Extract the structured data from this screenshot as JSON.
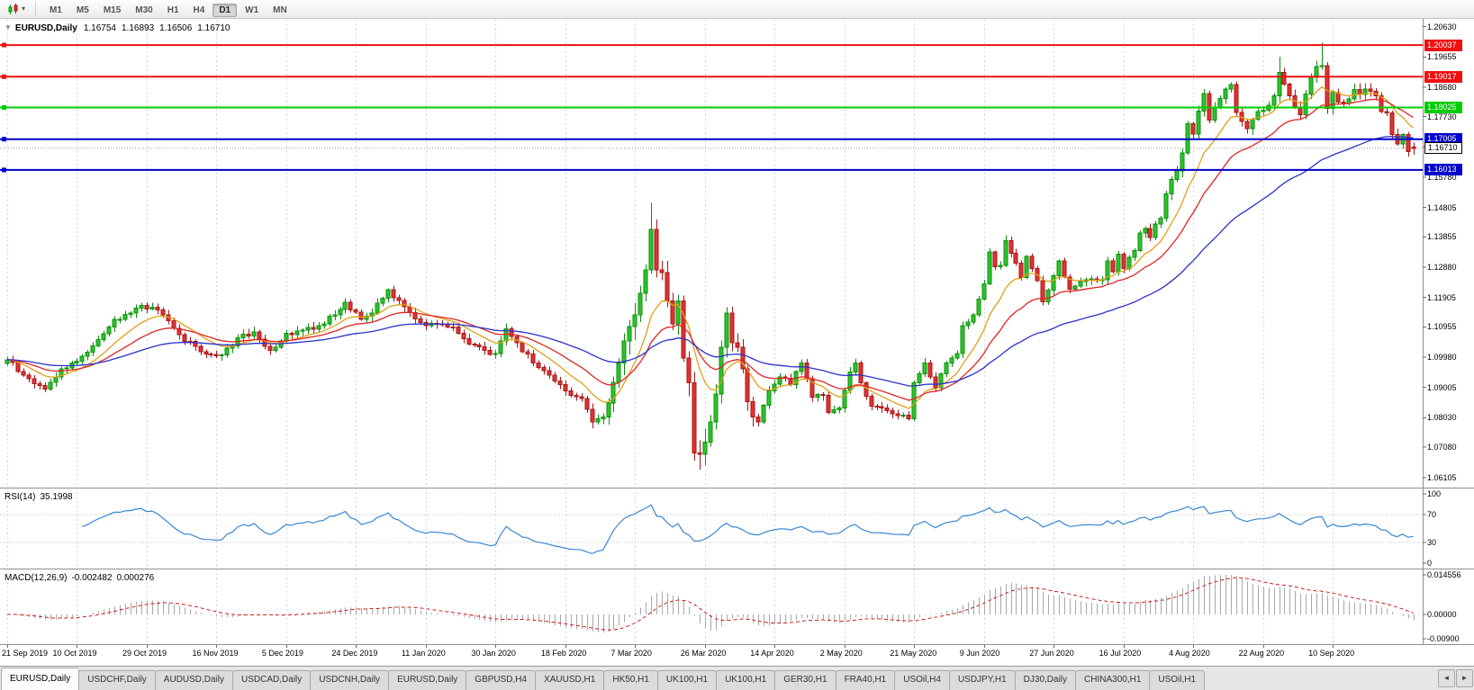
{
  "toolbar": {
    "timeframes": [
      "M1",
      "M5",
      "M15",
      "M30",
      "H1",
      "H4",
      "D1",
      "W1",
      "MN"
    ],
    "active_timeframe": "D1"
  },
  "chart_header": {
    "collapse_icon": "▼",
    "symbol_title": "EURUSD,Daily",
    "open": "1.16754",
    "high": "1.16893",
    "low": "1.16506",
    "close": "1.16710"
  },
  "price_axis_labels": [
    "1.20630",
    "1.19655",
    "1.18680",
    "1.17730",
    "1.16755",
    "1.15780",
    "1.14805",
    "1.13855",
    "1.12880",
    "1.11905",
    "1.10955",
    "1.09980",
    "1.09005",
    "1.08030",
    "1.07080",
    "1.06105"
  ],
  "horizontal_lines": [
    {
      "label": "1.20037",
      "price": 1.20037,
      "color": "#ee1111"
    },
    {
      "label": "1.19017",
      "price": 1.19017,
      "color": "#ee1111"
    },
    {
      "label": "1.18025",
      "price": 1.18025,
      "color": "#00cc00"
    },
    {
      "label": "1.17005",
      "price": 1.17005,
      "color": "#0000cc"
    },
    {
      "label": "1.16013",
      "price": 1.16013,
      "color": "#0000cc"
    }
  ],
  "current_price_tag": {
    "label": "1.16710",
    "price": 1.1671
  },
  "date_labels": [
    "21 Sep 2019",
    "10 Oct 2019",
    "29 Oct 2019",
    "16 Nov 2019",
    "5 Dec 2019",
    "24 Dec 2019",
    "11 Jan 2020",
    "30 Jan 2020",
    "18 Feb 2020",
    "7 Mar 2020",
    "26 Mar 2020",
    "14 Apr 2020",
    "2 May 2020",
    "21 May 2020",
    "9 Jun 2020",
    "27 Jun 2020",
    "16 Jul 2020",
    "4 Aug 2020",
    "22 Aug 2020",
    "10 Sep 2020"
  ],
  "rsi_panel": {
    "label": "RSI(14)",
    "value": "35.1998",
    "axis_labels": [
      {
        "text": "100",
        "value": 100
      },
      {
        "text": "70",
        "value": 70
      },
      {
        "text": "30",
        "value": 30
      },
      {
        "text": "0",
        "value": 0
      }
    ]
  },
  "macd_panel": {
    "label": "MACD(12,26,9)",
    "value_main": "-0.002482",
    "value_signal": "0.000276",
    "axis_labels": [
      {
        "text": "0.014556",
        "value": 0.014556
      },
      {
        "text": "0.00000",
        "value": 0
      },
      {
        "text": "-0.00900",
        "value": -0.009
      }
    ]
  },
  "tabs": {
    "items": [
      "EURUSD,Daily",
      "USDCHF,Daily",
      "AUDUSD,Daily",
      "USDCAD,Daily",
      "USDCNH,Daily",
      "EURUSD,Daily",
      "GBPUSD,H4",
      "XAUUSD,H1",
      "HK50,H1",
      "UK100,H1",
      "UK100,H1",
      "GER30,H1",
      "FRA40,H1",
      "USOil,H4",
      "USDJPY,H1",
      "DJ30,Daily",
      "CHINA300,H1",
      "USOil,H1"
    ],
    "active_index": 0,
    "scroll_left_icon": "◄",
    "scroll_right_icon": "►"
  },
  "chart_data": {
    "type": "candlestick",
    "symbol": "EURUSD",
    "timeframe": "Daily",
    "bar_count": 263,
    "price_range": {
      "max": 1.2088,
      "min": 1.0578
    },
    "bars_per_date_tick": 13,
    "up_fill": "#2cc42c",
    "up_border": "#0b8f0b",
    "down_fill": "#df3434",
    "down_border": "#a81414",
    "grid_color": "#d8d8d8",
    "current_line_color": "#9a9a9a",
    "close_keyframes": [
      [
        0,
        1.099
      ],
      [
        3,
        1.094
      ],
      [
        7,
        1.0895
      ],
      [
        10,
        1.096
      ],
      [
        13,
        1.0985
      ],
      [
        16,
        1.1035
      ],
      [
        20,
        1.112
      ],
      [
        23,
        1.114
      ],
      [
        25,
        1.1165
      ],
      [
        28,
        1.115
      ],
      [
        32,
        1.107
      ],
      [
        36,
        1.1015
      ],
      [
        40,
        1.1005
      ],
      [
        43,
        1.106
      ],
      [
        46,
        1.108
      ],
      [
        49,
        1.102
      ],
      [
        52,
        1.1075
      ],
      [
        55,
        1.1085
      ],
      [
        58,
        1.11
      ],
      [
        61,
        1.1135
      ],
      [
        63,
        1.1175
      ],
      [
        66,
        1.112
      ],
      [
        68,
        1.114
      ],
      [
        71,
        1.1215
      ],
      [
        74,
        1.116
      ],
      [
        77,
        1.111
      ],
      [
        80,
        1.1105
      ],
      [
        83,
        1.1095
      ],
      [
        86,
        1.104
      ],
      [
        89,
        1.102
      ],
      [
        91,
        1.101
      ],
      [
        93,
        1.109
      ],
      [
        95,
        1.1045
      ],
      [
        98,
        1.098
      ],
      [
        101,
        1.094
      ],
      [
        104,
        1.089
      ],
      [
        107,
        1.0865
      ],
      [
        109,
        1.079
      ],
      [
        111,
        1.0805
      ],
      [
        112,
        1.085
      ],
      [
        114,
        1.098
      ],
      [
        115,
        1.105
      ],
      [
        117,
        1.1135
      ],
      [
        119,
        1.128
      ],
      [
        120,
        1.141
      ],
      [
        121,
        1.128
      ],
      [
        122,
        1.127
      ],
      [
        123,
        1.118
      ],
      [
        124,
        1.1105
      ],
      [
        125,
        1.118
      ],
      [
        126,
        1.0995
      ],
      [
        127,
        1.0915
      ],
      [
        128,
        1.069
      ],
      [
        129,
        1.0685
      ],
      [
        130,
        1.0725
      ],
      [
        131,
        1.079
      ],
      [
        132,
        1.088
      ],
      [
        133,
        1.103
      ],
      [
        134,
        1.114
      ],
      [
        135,
        1.1045
      ],
      [
        136,
        1.103
      ],
      [
        137,
        1.096
      ],
      [
        138,
        1.0855
      ],
      [
        139,
        1.0805
      ],
      [
        140,
        1.079
      ],
      [
        142,
        1.089
      ],
      [
        144,
        1.0935
      ],
      [
        146,
        1.091
      ],
      [
        148,
        1.098
      ],
      [
        150,
        1.087
      ],
      [
        152,
        1.0875
      ],
      [
        153,
        1.082
      ],
      [
        155,
        1.0835
      ],
      [
        157,
        1.095
      ],
      [
        158,
        1.098
      ],
      [
        159,
        1.0915
      ],
      [
        161,
        1.084
      ],
      [
        163,
        1.0835
      ],
      [
        166,
        1.081
      ],
      [
        168,
        1.08
      ],
      [
        169,
        1.0915
      ],
      [
        171,
        1.098
      ],
      [
        173,
        1.09
      ],
      [
        175,
        1.098
      ],
      [
        177,
        1.101
      ],
      [
        178,
        1.11
      ],
      [
        180,
        1.1135
      ],
      [
        182,
        1.1235
      ],
      [
        183,
        1.1337
      ],
      [
        184,
        1.1289
      ],
      [
        185,
        1.1294
      ],
      [
        186,
        1.1374
      ],
      [
        188,
        1.1301
      ],
      [
        189,
        1.1255
      ],
      [
        190,
        1.1323
      ],
      [
        192,
        1.1245
      ],
      [
        193,
        1.1177
      ],
      [
        195,
        1.1261
      ],
      [
        196,
        1.1308
      ],
      [
        198,
        1.1217
      ],
      [
        200,
        1.1242
      ],
      [
        202,
        1.125
      ],
      [
        204,
        1.1248
      ],
      [
        205,
        1.1309
      ],
      [
        206,
        1.1273
      ],
      [
        207,
        1.133
      ],
      [
        208,
        1.1284
      ],
      [
        210,
        1.1342
      ],
      [
        211,
        1.1398
      ],
      [
        212,
        1.1412
      ],
      [
        213,
        1.1383
      ],
      [
        214,
        1.1427
      ],
      [
        215,
        1.1446
      ],
      [
        216,
        1.1525
      ],
      [
        217,
        1.1571
      ],
      [
        218,
        1.1598
      ],
      [
        219,
        1.1656
      ],
      [
        220,
        1.175
      ],
      [
        221,
        1.1717
      ],
      [
        222,
        1.1791
      ],
      [
        223,
        1.1847
      ],
      [
        224,
        1.1762
      ],
      [
        225,
        1.1802
      ],
      [
        227,
        1.1862
      ],
      [
        228,
        1.1876
      ],
      [
        229,
        1.1787
      ],
      [
        231,
        1.1735
      ],
      [
        233,
        1.179
      ],
      [
        235,
        1.181
      ],
      [
        236,
        1.184
      ],
      [
        237,
        1.1916
      ],
      [
        239,
        1.184
      ],
      [
        241,
        1.178
      ],
      [
        243,
        1.19
      ],
      [
        244,
        1.1935
      ],
      [
        245,
        1.1938
      ],
      [
        246,
        1.18
      ],
      [
        247,
        1.185
      ],
      [
        248,
        1.182
      ],
      [
        249,
        1.1815
      ],
      [
        250,
        1.183
      ],
      [
        251,
        1.186
      ],
      [
        252,
        1.1845
      ],
      [
        253,
        1.1862
      ],
      [
        254,
        1.1855
      ],
      [
        255,
        1.184
      ],
      [
        256,
        1.179
      ],
      [
        257,
        1.1785
      ],
      [
        258,
        1.1716
      ],
      [
        259,
        1.1685
      ],
      [
        260,
        1.1715
      ],
      [
        261,
        1.166
      ],
      [
        262,
        1.1671
      ]
    ],
    "wick_overrides": [
      [
        120,
        "h",
        1.1495
      ],
      [
        129,
        "l",
        1.0636
      ],
      [
        237,
        "h",
        1.1966
      ],
      [
        245,
        "h",
        1.2011
      ]
    ],
    "last_bar": {
      "o": 1.16754,
      "h": 1.16893,
      "l": 1.16506,
      "c": 1.1671
    },
    "moving_averages": [
      {
        "period": 10,
        "color": "#e0a018"
      },
      {
        "period": 21,
        "color": "#e02424"
      },
      {
        "period": 50,
        "color": "#2a32c8"
      }
    ],
    "indicators": {
      "rsi": {
        "period": 14,
        "color": "#3a86d2",
        "levels": [
          70,
          30
        ]
      },
      "macd": {
        "fast": 12,
        "slow": 26,
        "signal": 9,
        "hist_color": "#a8a8a8",
        "signal_color": "#cc2222"
      }
    }
  }
}
